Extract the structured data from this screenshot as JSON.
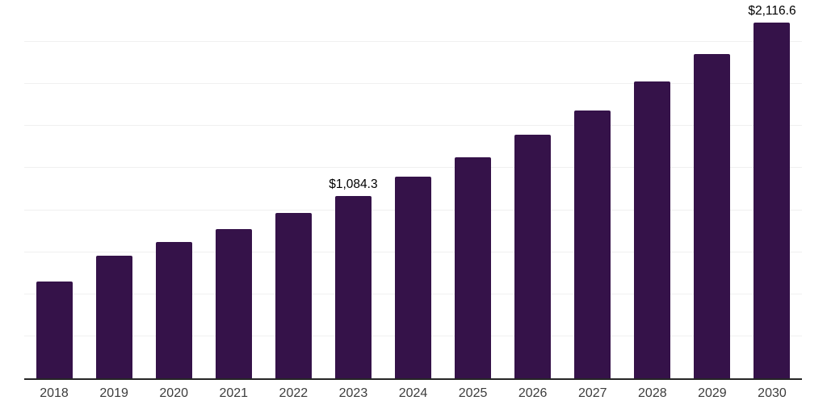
{
  "chart_data": {
    "type": "bar",
    "categories": [
      "2018",
      "2019",
      "2020",
      "2021",
      "2022",
      "2023",
      "2024",
      "2025",
      "2026",
      "2027",
      "2028",
      "2029",
      "2030"
    ],
    "values": [
      575,
      730,
      810,
      890,
      985,
      1084.3,
      1200,
      1315,
      1450,
      1595,
      1765,
      1930,
      2116.6
    ],
    "value_labels": {
      "2023": "$1,084.3",
      "2030": "$2,116.6"
    },
    "ylim": [
      0,
      2250
    ],
    "gridline_step": 250,
    "grid": "horizontal",
    "legend": "none",
    "xlabel": "",
    "ylabel": "",
    "colors": {
      "bar": "#351249",
      "gridline": "#f0f0f0",
      "axis": "#262626",
      "value_label": "#000000",
      "tick_label": "#3c3c3c"
    }
  }
}
